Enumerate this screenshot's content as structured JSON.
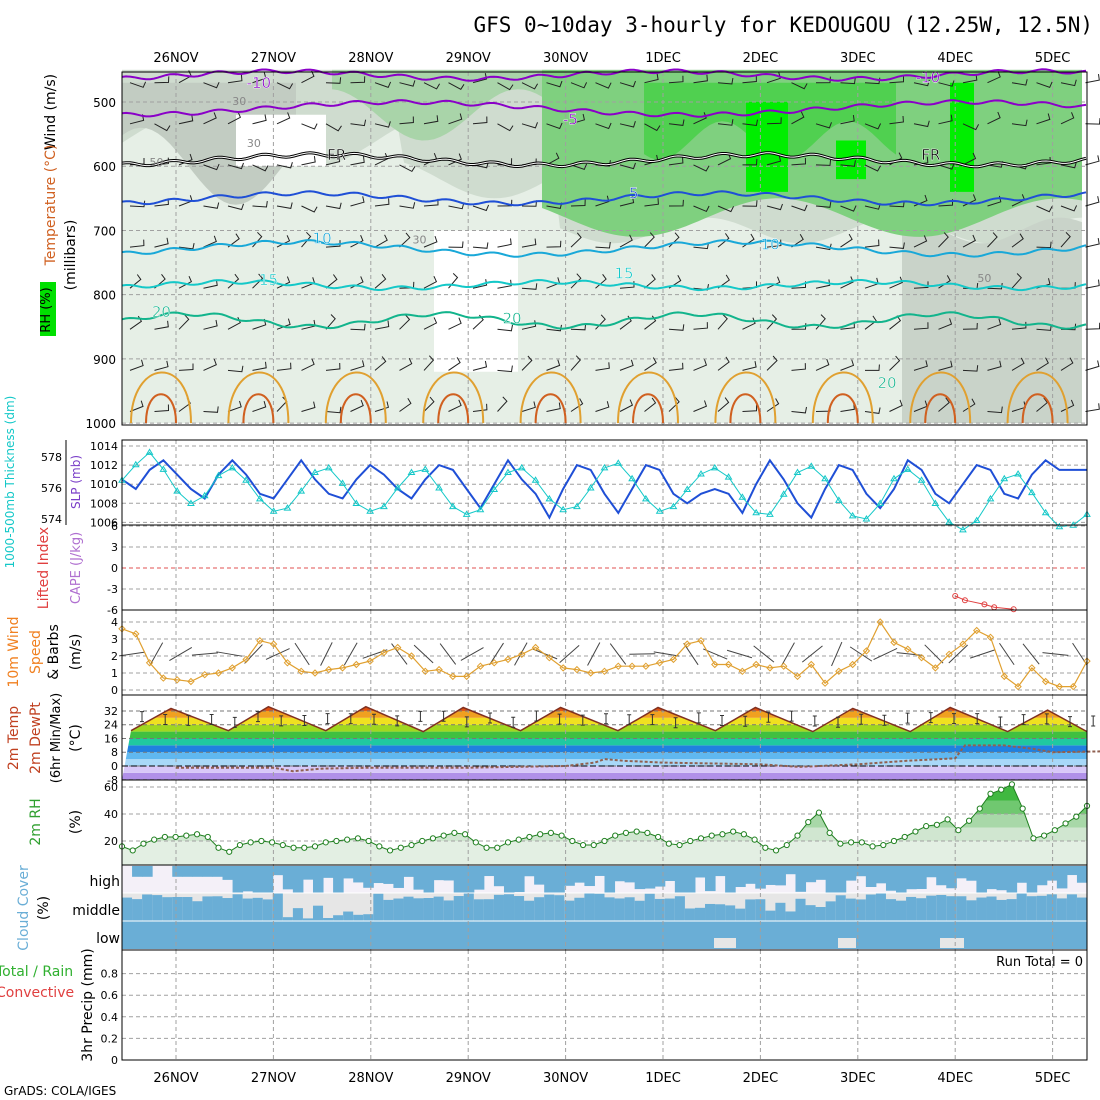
{
  "title": "GFS 0~10day 3-hourly for KEDOUGOU (12.25W, 12.5N)",
  "footer": "GrADS: COLA/IGES",
  "dates": [
    "26NOV",
    "27NOV",
    "28NOV",
    "29NOV",
    "30NOV",
    "1DEC",
    "2DEC",
    "3DEC",
    "4DEC",
    "5DEC"
  ],
  "colors": {
    "purple": "#8a00c8",
    "blue": "#1f4fd6",
    "lightblue": "#19a8d8",
    "cyan": "#14c8c8",
    "teal": "#12b48c",
    "orange": "#e0a030",
    "darkorange": "#d06020",
    "green": "#3fbf3f",
    "brightgreen": "#00e000",
    "gray": "#bcc5bc",
    "cloud": "#6aaed6",
    "grid": "#a0a0a0"
  },
  "chart_data": [
    {
      "id": "upper_air",
      "type": "contour",
      "ylabel_wind": "Wind (m/s)",
      "ylabel_temp": "Temperature (°C)",
      "ylabel_rh": "RH (%)",
      "ylabel_pressure": "(millibars)",
      "ylim": [
        1000,
        450
      ],
      "yticks": [
        500,
        600,
        700,
        800,
        900,
        1000
      ],
      "isotherm_labels": [
        {
          "text": "-10",
          "x": 0.85,
          "p": 478
        },
        {
          "text": "-10",
          "x": 7.72,
          "p": 470
        },
        {
          "text": "-5",
          "x": 4.05,
          "p": 535
        },
        {
          "text": "FR",
          "x": 1.65,
          "p": 590
        },
        {
          "text": "FR",
          "x": 7.75,
          "p": 590
        },
        {
          "text": "5",
          "x": 4.7,
          "p": 650
        },
        {
          "text": "10",
          "x": 1.5,
          "p": 720
        },
        {
          "text": "10",
          "x": 6.1,
          "p": 730
        },
        {
          "text": "15",
          "x": 0.95,
          "p": 785
        },
        {
          "text": "15",
          "x": 4.6,
          "p": 775
        },
        {
          "text": "20",
          "x": -0.15,
          "p": 835
        },
        {
          "text": "20",
          "x": 3.45,
          "p": 845
        },
        {
          "text": "20",
          "x": 7.3,
          "p": 945
        }
      ],
      "rh_labels": [
        {
          "text": "50",
          "x": -0.2,
          "p": 600
        },
        {
          "text": "30",
          "x": 0.8,
          "p": 570
        },
        {
          "text": "30",
          "x": 2.5,
          "p": 720
        },
        {
          "text": "50",
          "x": 8.3,
          "p": 780
        },
        {
          "text": "30",
          "x": 0.65,
          "p": 505
        }
      ]
    },
    {
      "id": "thickness_slp",
      "type": "line",
      "ylabel_left": "1000-500mb Thickness (dm)",
      "ylabel_right": "SLP (mb)",
      "yticks_left": [
        574,
        576,
        578
      ],
      "yticks_right": [
        1006,
        1008,
        1010,
        1012,
        1014
      ],
      "slp": [
        1010.5,
        1009.5,
        1011.5,
        1012.5,
        1011.0,
        1009.5,
        1008.5,
        1011.0,
        1012.5,
        1011.0,
        1009.0,
        1008.5,
        1010.5,
        1012.5,
        1010.5,
        1009.0,
        1008.5,
        1010.5,
        1012.0,
        1011.0,
        1009.5,
        1008.5,
        1010.5,
        1012.0,
        1011.5,
        1009.5,
        1007.5,
        1010.0,
        1012.5,
        1010.5,
        1009.0,
        1006.5,
        1009.5,
        1012.0,
        1011.5,
        1009.0,
        1007.0,
        1009.5,
        1012.0,
        1011.5,
        1009.0,
        1008.0,
        1009.0,
        1009.5,
        1009.0,
        1007.0,
        1010.0,
        1012.5,
        1010.5,
        1008.0,
        1006.5,
        1009.5,
        1012.0,
        1011.5,
        1009.0,
        1007.5,
        1009.5,
        1012.5,
        1011.5,
        1009.0,
        1008.0,
        1010.0,
        1012.0,
        1011.5,
        1009.0,
        1008.5,
        1011.0,
        1012.5,
        1011.5,
        1011.5,
        1011.5
      ],
      "thickness": [
        576.5,
        577.5,
        578.3,
        577.2,
        575.8,
        575.0,
        575.5,
        576.8,
        577.3,
        576.5,
        575.3,
        574.5,
        574.7,
        575.8,
        577.0,
        577.3,
        576.3,
        575.0,
        574.5,
        574.8,
        576.0,
        577.0,
        577.2,
        576.0,
        574.8,
        574.3,
        574.6,
        575.9,
        577.0,
        577.3,
        576.5,
        575.3,
        574.6,
        574.8,
        576.0,
        577.3,
        577.6,
        576.6,
        575.3,
        574.5,
        574.8,
        575.9,
        576.9,
        577.3,
        576.7,
        575.4,
        574.4,
        574.3,
        575.6,
        577.0,
        577.4,
        576.6,
        575.2,
        574.2,
        574.0,
        575.0,
        576.6,
        577.2,
        576.5,
        575.0,
        573.8,
        573.3,
        573.9,
        575.3,
        576.6,
        576.9,
        575.7,
        574.4,
        573.5,
        573.6,
        574.3
      ]
    },
    {
      "id": "cape_li",
      "type": "line",
      "ylabel_left": "Lifted Index",
      "ylabel_right": "CAPE (J/kg)",
      "yticks": [
        -6,
        -3,
        0,
        3,
        6
      ],
      "ytick_labels": [
        "6",
        "3",
        "0",
        "-3",
        "-6"
      ],
      "li_points": [
        [
          8.0,
          4.0
        ],
        [
          8.1,
          4.6
        ],
        [
          8.3,
          5.2
        ],
        [
          8.4,
          5.6
        ],
        [
          8.6,
          5.9
        ]
      ]
    },
    {
      "id": "wind10m",
      "type": "line",
      "ylabel": "10m Wind Speed & Barbs (m/s)",
      "yticks": [
        0,
        1,
        2,
        3,
        4
      ],
      "speed": [
        3.6,
        3.3,
        1.6,
        0.7,
        0.6,
        0.5,
        0.9,
        1.0,
        1.3,
        1.8,
        2.9,
        2.7,
        1.6,
        1.1,
        1.0,
        1.2,
        1.3,
        1.5,
        1.7,
        2.2,
        2.5,
        2.0,
        1.1,
        1.2,
        0.8,
        0.8,
        1.4,
        1.6,
        1.8,
        2.1,
        2.5,
        1.9,
        1.3,
        1.2,
        1.0,
        1.1,
        1.4,
        1.4,
        1.4,
        1.6,
        1.8,
        2.7,
        2.9,
        1.5,
        1.5,
        1.1,
        1.5,
        1.3,
        1.4,
        0.8,
        1.5,
        0.4,
        1.1,
        1.5,
        2.3,
        4.0,
        2.8,
        2.4,
        1.9,
        1.3,
        2.1,
        2.7,
        3.5,
        3.1,
        0.8,
        0.2,
        1.3,
        0.5,
        0.2,
        0.2,
        1.7
      ]
    },
    {
      "id": "temp2m",
      "type": "line",
      "ylabel": "2m Temp 2m DewPt (6hr Min/Max) (°C)",
      "yticks": [
        -8,
        0,
        8,
        16,
        24,
        32
      ],
      "temp_max": [
        33.5,
        34.5,
        34.5,
        34.0,
        34.0,
        34.0,
        34.0,
        33.5,
        34.0,
        32.5
      ],
      "temp_min": [
        20.5,
        20.5,
        20.5,
        20.0,
        20.5,
        20.5,
        20.5,
        20.0,
        20.0,
        20.0
      ],
      "dewpt_ctrl": [
        [
          0,
          -1
        ],
        [
          1,
          -1
        ],
        [
          1.2,
          -3
        ],
        [
          1.5,
          -1.5
        ],
        [
          2,
          -1
        ],
        [
          3,
          -1
        ],
        [
          4,
          0
        ],
        [
          4.3,
          2
        ],
        [
          4.4,
          4
        ],
        [
          4.6,
          3
        ],
        [
          5,
          2
        ],
        [
          6,
          1
        ],
        [
          6.4,
          -0.5
        ],
        [
          7,
          1
        ],
        [
          7.5,
          3
        ],
        [
          8,
          4.5
        ],
        [
          8.1,
          12
        ],
        [
          8.5,
          12
        ],
        [
          8.8,
          10
        ],
        [
          9,
          8
        ],
        [
          9.5,
          8.5
        ]
      ]
    },
    {
      "id": "rh2m",
      "type": "area",
      "ylabel": "2m RH (%)",
      "yticks": [
        20,
        40,
        60
      ],
      "rh": [
        16,
        13,
        18,
        21,
        23,
        23,
        24,
        25,
        23,
        15,
        12,
        17,
        19,
        20,
        19,
        17,
        15,
        15,
        16,
        19,
        20,
        21,
        22,
        20,
        16,
        13,
        15,
        17,
        20,
        22,
        24,
        26,
        25,
        19,
        15,
        15,
        19,
        21,
        23,
        25,
        26,
        24,
        20,
        17,
        17,
        20,
        24,
        26,
        27,
        26,
        23,
        18,
        17,
        20,
        22,
        24,
        25,
        27,
        25,
        21,
        15,
        13,
        17,
        24,
        34,
        41,
        26,
        18,
        19,
        19,
        16,
        17,
        20,
        23,
        27,
        31,
        32,
        36,
        28,
        35,
        44,
        55,
        58,
        62,
        44,
        22,
        24,
        28,
        33,
        38,
        46
      ]
    },
    {
      "id": "cloud",
      "type": "bar",
      "ylabel": "Cloud Cover (%)",
      "levels": [
        "high",
        "middle",
        "low"
      ]
    },
    {
      "id": "precip",
      "type": "bar",
      "ylabel": "3hr Precip (mm)",
      "ylabel2_a": "Total / Rain",
      "ylabel2_b": "Convective",
      "yticks": [
        0,
        0.2,
        0.4,
        0.6,
        0.8
      ],
      "run_total_label": "Run Total = 0"
    }
  ]
}
